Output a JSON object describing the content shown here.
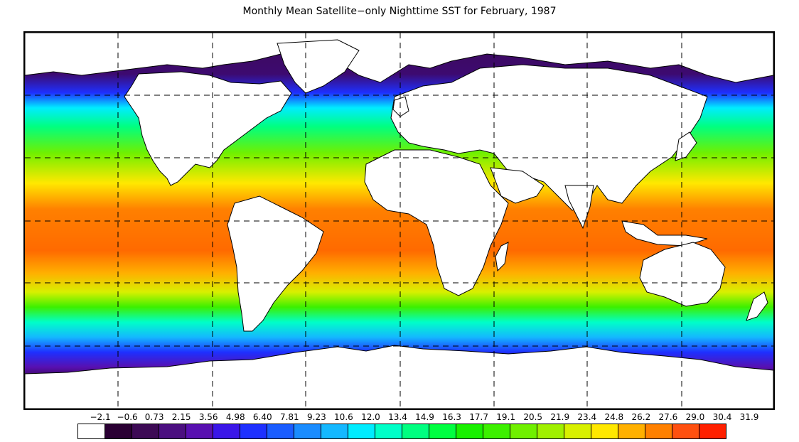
{
  "title": "Monthly Mean Satellite−only Nighttime SST for February, 1987",
  "colorbar": {
    "labels": [
      "−2.1",
      "−0.6",
      "0.73",
      "2.15",
      "3.56",
      "4.98",
      "6.40",
      "7.81",
      "9.23",
      "10.6",
      "12.0",
      "13.4",
      "14.9",
      "16.3",
      "17.7",
      "19.1",
      "20.5",
      "21.9",
      "23.4",
      "24.8",
      "26.2",
      "27.6",
      "29.0",
      "30.4",
      "31.9"
    ],
    "colors": [
      "#ffffff",
      "#2a0033",
      "#3d0a55",
      "#4b0f80",
      "#5810b0",
      "#3a16e8",
      "#1e30ff",
      "#1a5cff",
      "#1a8cff",
      "#14b8ff",
      "#00ecff",
      "#00ffc8",
      "#00ff80",
      "#00ff40",
      "#18f000",
      "#3cf000",
      "#70f000",
      "#a0f000",
      "#d8f000",
      "#ffe800",
      "#ffb000",
      "#ff8000",
      "#ff5010",
      "#ff2000"
    ]
  },
  "map": {
    "projection": "equirectangular",
    "grid": "dashed",
    "land_color": "#ffffff",
    "coastline_color": "#000000"
  }
}
